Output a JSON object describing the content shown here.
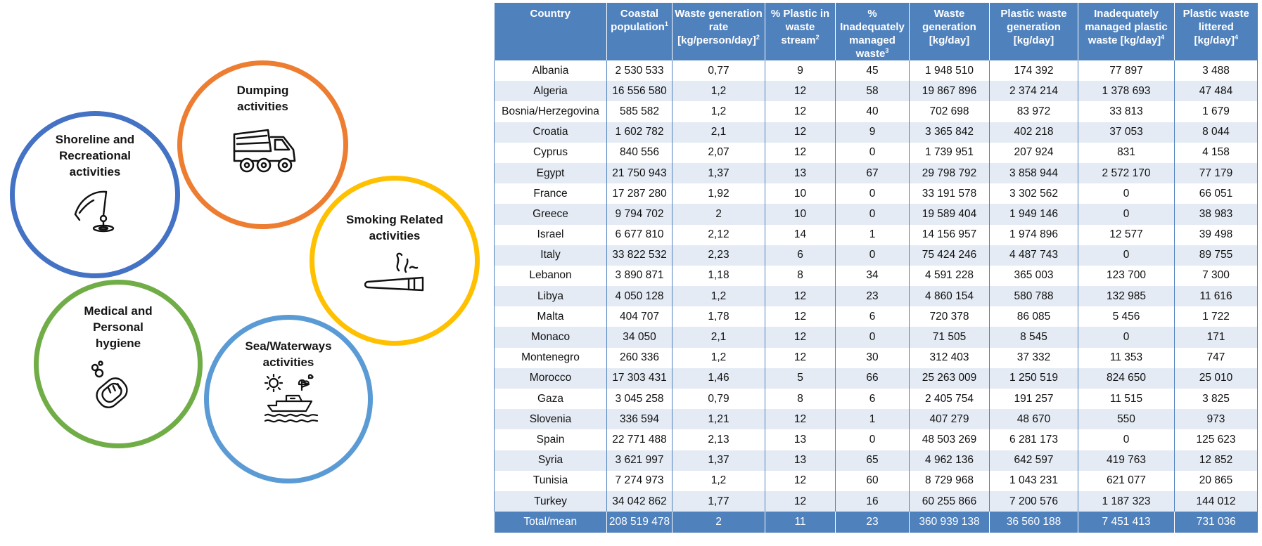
{
  "circles": {
    "shoreline": {
      "label": "Shoreline and\nRecreational\nactivities",
      "color": "#4472c4",
      "icon": "fishing-rod-icon"
    },
    "dumping": {
      "label": "Dumping\nactivities",
      "color": "#ed7d31",
      "icon": "dump-truck-icon"
    },
    "smoking": {
      "label": "Smoking Related\nactivities",
      "color": "#ffc000",
      "icon": "cigarette-icon"
    },
    "medical": {
      "label": "Medical and\nPersonal\nhygiene",
      "color": "#70ad47",
      "icon": "soap-icon"
    },
    "sea": {
      "label": "Sea/Waterways\nactivities",
      "color": "#5b9bd5",
      "icon": "boat-icon"
    }
  },
  "table": {
    "header_color": "#4f81bd",
    "stripe_color": "#e4ebf4",
    "columns": [
      {
        "label": "Country",
        "sup": ""
      },
      {
        "label": "Coastal population",
        "sup": "1"
      },
      {
        "label": "Waste generation rate [kg/person/day]",
        "sup": "2"
      },
      {
        "label": "% Plastic in waste stream",
        "sup": "2"
      },
      {
        "label": "% Inadequately managed waste",
        "sup": "3"
      },
      {
        "label": "Waste generation [kg/day]",
        "sup": ""
      },
      {
        "label": "Plastic waste generation [kg/day]",
        "sup": ""
      },
      {
        "label": "Inadequately managed plastic waste [kg/day]",
        "sup": "4"
      },
      {
        "label": "Plastic waste littered [kg/day]",
        "sup": "4"
      }
    ],
    "rows": [
      [
        "Albania",
        "2 530 533",
        "0,77",
        "9",
        "45",
        "1 948 510",
        "174 392",
        "77 897",
        "3 488"
      ],
      [
        "Algeria",
        "16 556 580",
        "1,2",
        "12",
        "58",
        "19 867 896",
        "2 374 214",
        "1 378 693",
        "47 484"
      ],
      [
        "Bosnia/Herzegovina",
        "585 582",
        "1,2",
        "12",
        "40",
        "702 698",
        "83 972",
        "33 813",
        "1 679"
      ],
      [
        "Croatia",
        "1 602 782",
        "2,1",
        "12",
        "9",
        "3 365 842",
        "402 218",
        "37 053",
        "8 044"
      ],
      [
        "Cyprus",
        "840 556",
        "2,07",
        "12",
        "0",
        "1 739 951",
        "207 924",
        "831",
        "4 158"
      ],
      [
        "Egypt",
        "21 750 943",
        "1,37",
        "13",
        "67",
        "29 798 792",
        "3 858 944",
        "2 572 170",
        "77 179"
      ],
      [
        "France",
        "17 287 280",
        "1,92",
        "10",
        "0",
        "33 191 578",
        "3 302 562",
        "0",
        "66 051"
      ],
      [
        "Greece",
        "9 794 702",
        "2",
        "10",
        "0",
        "19 589 404",
        "1 949 146",
        "0",
        "38 983"
      ],
      [
        "Israel",
        "6 677 810",
        "2,12",
        "14",
        "1",
        "14 156 957",
        "1 974 896",
        "12 577",
        "39 498"
      ],
      [
        "Italy",
        "33 822 532",
        "2,23",
        "6",
        "0",
        "75 424 246",
        "4 487 743",
        "0",
        "89 755"
      ],
      [
        "Lebanon",
        "3 890 871",
        "1,18",
        "8",
        "34",
        "4 591 228",
        "365 003",
        "123 700",
        "7 300"
      ],
      [
        "Libya",
        "4 050 128",
        "1,2",
        "12",
        "23",
        "4 860 154",
        "580 788",
        "132 985",
        "11 616"
      ],
      [
        "Malta",
        "404 707",
        "1,78",
        "12",
        "6",
        "720 378",
        "86 085",
        "5 456",
        "1 722"
      ],
      [
        "Monaco",
        "34 050",
        "2,1",
        "12",
        "0",
        "71 505",
        "8 545",
        "0",
        "171"
      ],
      [
        "Montenegro",
        "260 336",
        "1,2",
        "12",
        "30",
        "312 403",
        "37 332",
        "11 353",
        "747"
      ],
      [
        "Morocco",
        "17 303 431",
        "1,46",
        "5",
        "66",
        "25 263 009",
        "1 250 519",
        "824 650",
        "25 010"
      ],
      [
        "Gaza",
        "3 045 258",
        "0,79",
        "8",
        "6",
        "2 405 754",
        "191 257",
        "11 515",
        "3 825"
      ],
      [
        "Slovenia",
        "336 594",
        "1,21",
        "12",
        "1",
        "407 279",
        "48 670",
        "550",
        "973"
      ],
      [
        "Spain",
        "22 771 488",
        "2,13",
        "13",
        "0",
        "48 503 269",
        "6 281 173",
        "0",
        "125 623"
      ],
      [
        "Syria",
        "3 621 997",
        "1,37",
        "13",
        "65",
        "4 962 136",
        "642 597",
        "419 763",
        "12 852"
      ],
      [
        "Tunisia",
        "7 274 973",
        "1,2",
        "12",
        "60",
        "8 729 968",
        "1 043 231",
        "621 077",
        "20 865"
      ],
      [
        "Turkey",
        "34 042 862",
        "1,77",
        "12",
        "16",
        "60 255 866",
        "7 200 576",
        "1 187 323",
        "144 012"
      ]
    ],
    "total": [
      "Total/mean",
      "208 519 478",
      "2",
      "11",
      "23",
      "360 939 138",
      "36 560 188",
      "7 451 413",
      "731 036"
    ]
  }
}
